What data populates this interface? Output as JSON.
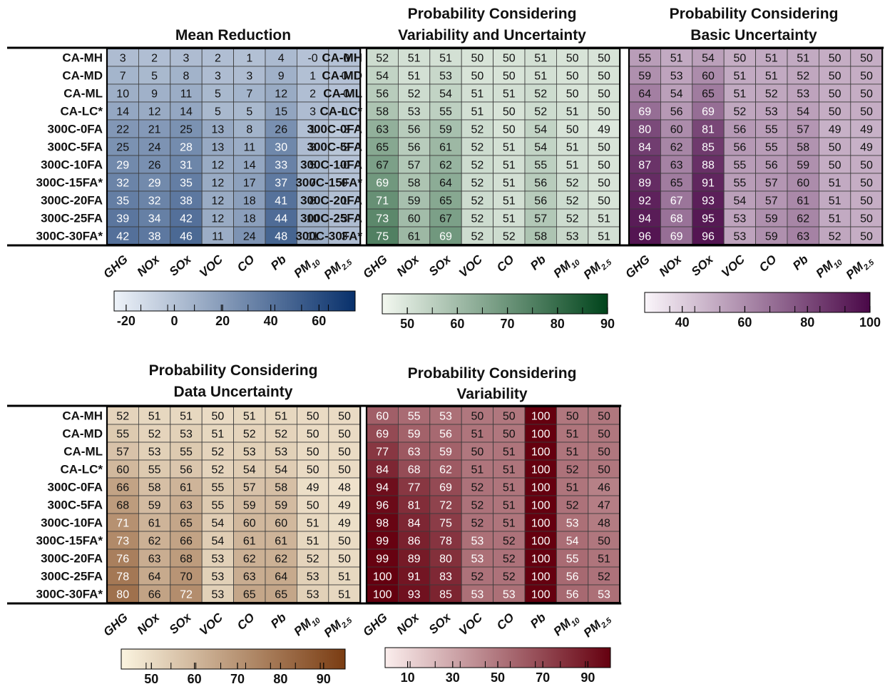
{
  "colors": {
    "blue": [
      "#eef3f9",
      "#08306b"
    ],
    "green": [
      "#f3f8f0",
      "#00441b"
    ],
    "purple": [
      "#fbf6fb",
      "#4a0848"
    ],
    "brown": [
      "#fbf4e0",
      "#7a3c12"
    ],
    "red": [
      "#fbeeed",
      "#65000f"
    ]
  },
  "chart_data": [
    {
      "type": "heatmap",
      "title": [
        "Mean Reduction"
      ],
      "rows": [
        "CA-MH",
        "CA-MD",
        "CA-ML",
        "CA-LC*",
        "300C-0FA",
        "300C-5FA",
        "300C-10FA",
        "300C-15FA*",
        "300C-20FA",
        "300C-25FA",
        "300C-30FA*"
      ],
      "cols": [
        [
          "GHG"
        ],
        [
          "NOx"
        ],
        [
          "SOx"
        ],
        [
          "VOC"
        ],
        [
          "CO"
        ],
        [
          "Pb"
        ],
        [
          "PM",
          "10"
        ],
        [
          "PM",
          "2.5"
        ]
      ],
      "values": [
        [
          "3",
          "2",
          "3",
          "2",
          "1",
          "4",
          "-0",
          "-0"
        ],
        [
          "7",
          "5",
          "8",
          "3",
          "3",
          "9",
          "1",
          "0"
        ],
        [
          "10",
          "9",
          "11",
          "5",
          "7",
          "12",
          "2",
          "-0"
        ],
        [
          "14",
          "12",
          "14",
          "5",
          "5",
          "15",
          "3",
          "0"
        ],
        [
          "22",
          "21",
          "25",
          "13",
          "8",
          "26",
          "1",
          "-3"
        ],
        [
          "25",
          "24",
          "28",
          "13",
          "11",
          "30",
          "3",
          "-2"
        ],
        [
          "29",
          "26",
          "31",
          "12",
          "14",
          "33",
          "5",
          "-0"
        ],
        [
          "32",
          "29",
          "35",
          "12",
          "17",
          "37",
          "7",
          "0"
        ],
        [
          "35",
          "32",
          "38",
          "12",
          "18",
          "41",
          "8",
          "1"
        ],
        [
          "39",
          "34",
          "42",
          "12",
          "18",
          "44",
          "10",
          "3"
        ],
        [
          "42",
          "38",
          "46",
          "11",
          "24",
          "48",
          "11",
          "3"
        ]
      ],
      "colorscale": "blue",
      "range": [
        -25,
        75
      ],
      "ticks": [
        "-20",
        "0",
        "20",
        "40",
        "60"
      ]
    },
    {
      "type": "heatmap",
      "title": [
        "Probability Considering",
        "Variability and Uncertainty"
      ],
      "rows": [
        "CA-MH",
        "CA-MD",
        "CA-ML",
        "CA-LC*",
        "300C-0FA",
        "300C-5FA",
        "300C-10FA",
        "300C-15FA*",
        "300C-20FA",
        "300C-25FA",
        "300C-30FA*"
      ],
      "cols": [
        [
          "GHG"
        ],
        [
          "NOx"
        ],
        [
          "SOx"
        ],
        [
          "VOC"
        ],
        [
          "CO"
        ],
        [
          "Pb"
        ],
        [
          "PM",
          "10"
        ],
        [
          "PM",
          "2.5"
        ]
      ],
      "values": [
        [
          "52",
          "51",
          "51",
          "50",
          "50",
          "51",
          "50",
          "50"
        ],
        [
          "54",
          "51",
          "53",
          "50",
          "50",
          "51",
          "50",
          "50"
        ],
        [
          "56",
          "52",
          "54",
          "51",
          "51",
          "52",
          "50",
          "50"
        ],
        [
          "58",
          "53",
          "55",
          "51",
          "50",
          "52",
          "51",
          "50"
        ],
        [
          "63",
          "56",
          "59",
          "52",
          "50",
          "54",
          "50",
          "49"
        ],
        [
          "65",
          "56",
          "61",
          "52",
          "51",
          "54",
          "51",
          "50"
        ],
        [
          "67",
          "57",
          "62",
          "52",
          "51",
          "55",
          "51",
          "50"
        ],
        [
          "69",
          "58",
          "64",
          "52",
          "51",
          "56",
          "52",
          "50"
        ],
        [
          "71",
          "59",
          "65",
          "52",
          "51",
          "56",
          "52",
          "50"
        ],
        [
          "73",
          "60",
          "67",
          "52",
          "51",
          "57",
          "52",
          "51"
        ],
        [
          "75",
          "61",
          "69",
          "52",
          "52",
          "58",
          "53",
          "51"
        ]
      ],
      "colorscale": "green",
      "range": [
        45,
        90
      ],
      "ticks": [
        "50",
        "60",
        "70",
        "80",
        "90"
      ]
    },
    {
      "type": "heatmap",
      "title": [
        "Probability Considering",
        "Basic Uncertainty"
      ],
      "rows": [],
      "cols": [
        [
          "GHG"
        ],
        [
          "NOx"
        ],
        [
          "SOx"
        ],
        [
          "VOC"
        ],
        [
          "CO"
        ],
        [
          "Pb"
        ],
        [
          "PM",
          "10"
        ],
        [
          "PM",
          "2.5"
        ]
      ],
      "values": [
        [
          "55",
          "51",
          "54",
          "50",
          "51",
          "51",
          "50",
          "50"
        ],
        [
          "59",
          "53",
          "60",
          "51",
          "51",
          "52",
          "50",
          "50"
        ],
        [
          "64",
          "54",
          "65",
          "51",
          "52",
          "53",
          "50",
          "50"
        ],
        [
          "69",
          "56",
          "69",
          "52",
          "53",
          "54",
          "50",
          "50"
        ],
        [
          "80",
          "60",
          "81",
          "56",
          "55",
          "57",
          "49",
          "49"
        ],
        [
          "84",
          "62",
          "85",
          "56",
          "55",
          "58",
          "50",
          "49"
        ],
        [
          "87",
          "63",
          "88",
          "55",
          "56",
          "59",
          "50",
          "50"
        ],
        [
          "89",
          "65",
          "91",
          "55",
          "57",
          "60",
          "51",
          "50"
        ],
        [
          "92",
          "67",
          "93",
          "54",
          "57",
          "61",
          "51",
          "50"
        ],
        [
          "94",
          "68",
          "95",
          "53",
          "59",
          "62",
          "51",
          "50"
        ],
        [
          "96",
          "69",
          "96",
          "53",
          "59",
          "63",
          "52",
          "50"
        ]
      ],
      "colorscale": "purple",
      "range": [
        28,
        100
      ],
      "ticks": [
        "40",
        "60",
        "80",
        "100"
      ]
    },
    {
      "type": "heatmap",
      "title": [
        "Probability Considering",
        "Data Uncertainty"
      ],
      "rows": [
        "CA-MH",
        "CA-MD",
        "CA-ML",
        "CA-LC*",
        "300C-0FA",
        "300C-5FA",
        "300C-10FA",
        "300C-15FA*",
        "300C-20FA",
        "300C-25FA",
        "300C-30FA*"
      ],
      "cols": [
        [
          "GHG"
        ],
        [
          "NOx"
        ],
        [
          "SOx"
        ],
        [
          "VOC"
        ],
        [
          "CO"
        ],
        [
          "Pb"
        ],
        [
          "PM",
          "10"
        ],
        [
          "PM",
          "2.5"
        ]
      ],
      "values": [
        [
          "52",
          "51",
          "51",
          "50",
          "51",
          "51",
          "50",
          "50"
        ],
        [
          "55",
          "52",
          "53",
          "51",
          "52",
          "52",
          "50",
          "50"
        ],
        [
          "57",
          "53",
          "55",
          "52",
          "53",
          "53",
          "50",
          "50"
        ],
        [
          "60",
          "55",
          "56",
          "52",
          "54",
          "54",
          "50",
          "50"
        ],
        [
          "66",
          "58",
          "61",
          "55",
          "57",
          "58",
          "49",
          "48"
        ],
        [
          "68",
          "59",
          "63",
          "55",
          "59",
          "59",
          "50",
          "49"
        ],
        [
          "71",
          "61",
          "65",
          "54",
          "60",
          "60",
          "51",
          "49"
        ],
        [
          "73",
          "62",
          "66",
          "54",
          "61",
          "61",
          "51",
          "50"
        ],
        [
          "76",
          "63",
          "68",
          "53",
          "62",
          "62",
          "52",
          "50"
        ],
        [
          "78",
          "64",
          "70",
          "53",
          "63",
          "64",
          "53",
          "51"
        ],
        [
          "80",
          "66",
          "72",
          "53",
          "65",
          "65",
          "53",
          "51"
        ]
      ],
      "colorscale": "brown",
      "range": [
        43,
        95
      ],
      "ticks": [
        "50",
        "60",
        "70",
        "80",
        "90"
      ]
    },
    {
      "type": "heatmap",
      "title": [
        "Probability Considering",
        "Variability"
      ],
      "rows": [],
      "cols": [
        [
          "GHG"
        ],
        [
          "NOx"
        ],
        [
          "SOx"
        ],
        [
          "VOC"
        ],
        [
          "CO"
        ],
        [
          "Pb"
        ],
        [
          "PM",
          "10"
        ],
        [
          "PM",
          "2.5"
        ]
      ],
      "values": [
        [
          "60",
          "55",
          "53",
          "50",
          "50",
          "100",
          "50",
          "50"
        ],
        [
          "69",
          "59",
          "56",
          "51",
          "50",
          "100",
          "51",
          "50"
        ],
        [
          "77",
          "63",
          "59",
          "50",
          "51",
          "100",
          "51",
          "50"
        ],
        [
          "84",
          "68",
          "62",
          "51",
          "51",
          "100",
          "52",
          "50"
        ],
        [
          "94",
          "77",
          "69",
          "52",
          "51",
          "100",
          "51",
          "46"
        ],
        [
          "96",
          "81",
          "72",
          "52",
          "51",
          "100",
          "52",
          "47"
        ],
        [
          "98",
          "84",
          "75",
          "52",
          "51",
          "100",
          "53",
          "48"
        ],
        [
          "99",
          "86",
          "78",
          "53",
          "52",
          "100",
          "54",
          "50"
        ],
        [
          "99",
          "89",
          "80",
          "53",
          "52",
          "100",
          "55",
          "51"
        ],
        [
          "100",
          "91",
          "83",
          "52",
          "52",
          "100",
          "56",
          "52"
        ],
        [
          "100",
          "93",
          "85",
          "53",
          "53",
          "100",
          "56",
          "53"
        ]
      ],
      "colorscale": "red",
      "range": [
        0,
        100
      ],
      "ticks": [
        "10",
        "30",
        "50",
        "70",
        "90"
      ]
    }
  ]
}
